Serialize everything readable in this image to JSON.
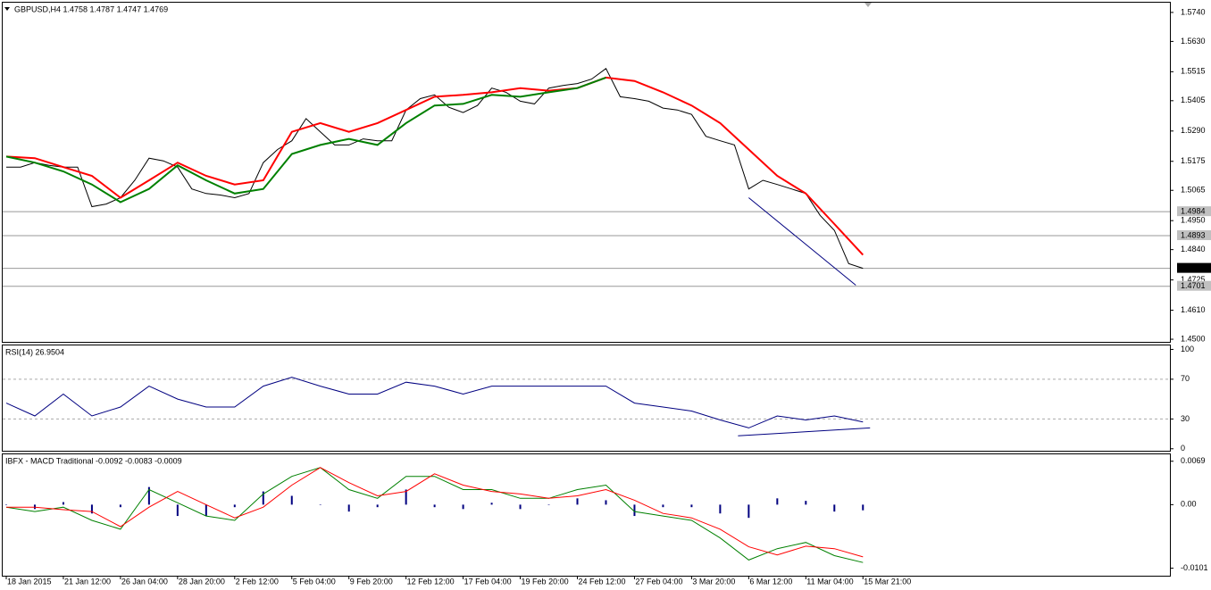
{
  "chart_data": [
    {
      "type": "line",
      "title": "GBPUSD,H4  1.4758 1.4787 1.4747 1.4769",
      "xlim": [
        -1,
        326
      ],
      "ylim": [
        1.449,
        1.5777
      ],
      "yticks": [
        {
          "value": 1.574,
          "label": "1.5740"
        },
        {
          "value": 1.563,
          "label": "1.5630"
        },
        1.5515,
        1.5405,
        {
          "value": 1.529,
          "label": "1.5290"
        },
        1.5175,
        1.5065,
        {
          "value": 1.495,
          "label": "1.4950"
        },
        {
          "value": 1.484,
          "label": "1.4840"
        },
        1.4725,
        {
          "value": 1.461,
          "label": "1.4610"
        },
        {
          "value": 1.45,
          "label": "1.4500"
        }
      ],
      "levels": [
        1.4984,
        1.4893,
        1.4701
      ],
      "current": 1.4769,
      "trendlines": [
        {
          "x": [
            208,
            238
          ],
          "y": [
            1.5037,
            1.4705
          ]
        }
      ],
      "series": [
        {
          "name": "GBPUSD",
          "color": "#000000",
          "x": [
            0,
            4,
            8,
            12,
            16,
            20,
            24,
            28,
            32,
            36,
            40,
            44,
            48,
            52,
            56,
            60,
            64,
            68,
            72,
            76,
            80,
            84,
            88,
            92,
            96,
            100,
            104,
            108,
            112,
            116,
            120,
            124,
            128,
            132,
            136,
            140,
            144,
            148,
            152,
            156,
            160,
            164,
            168,
            172,
            176,
            180,
            184,
            188,
            192,
            196,
            200,
            204,
            208,
            212,
            216,
            220,
            224,
            228,
            232,
            236,
            240
          ],
          "values": [
            1.5153,
            1.5153,
            1.517,
            1.516,
            1.5153,
            1.5153,
            1.5003,
            1.5013,
            1.5037,
            1.5103,
            1.5187,
            1.5177,
            1.5153,
            1.507,
            1.5053,
            1.5047,
            1.5037,
            1.5053,
            1.517,
            1.522,
            1.5253,
            1.5337,
            1.5287,
            1.5237,
            1.5237,
            1.526,
            1.5253,
            1.5253,
            1.537,
            1.5413,
            1.5427,
            1.538,
            1.536,
            1.5387,
            1.5453,
            1.5437,
            1.5403,
            1.5393,
            1.5453,
            1.5463,
            1.547,
            1.5487,
            1.5527,
            1.542,
            1.5413,
            1.5403,
            1.5377,
            1.537,
            1.5353,
            1.527,
            1.5253,
            1.5237,
            1.507,
            1.5103,
            1.5087,
            1.507,
            1.5053,
            1.497,
            1.4913,
            1.4787,
            1.4769
          ]
        },
        {
          "name": "MA slow",
          "color": "#ff0000",
          "x": [
            0,
            8,
            16,
            24,
            32,
            40,
            48,
            56,
            64,
            72,
            80,
            88,
            96,
            104,
            112,
            120,
            128,
            136,
            144,
            152,
            160,
            168,
            176,
            184,
            192,
            200,
            208,
            216,
            224,
            232,
            240
          ],
          "values": [
            1.5193,
            1.5187,
            1.5153,
            1.512,
            1.5037,
            1.5103,
            1.517,
            1.512,
            1.5087,
            1.5103,
            1.5287,
            1.532,
            1.5287,
            1.532,
            1.537,
            1.542,
            1.5427,
            1.5437,
            1.5453,
            1.5443,
            1.5453,
            1.5493,
            1.548,
            1.5437,
            1.5387,
            1.532,
            1.522,
            1.512,
            1.5053,
            1.4937,
            1.482
          ]
        },
        {
          "name": "MA fast",
          "color": "#008000",
          "x": [
            0,
            8,
            16,
            24,
            32,
            40,
            48,
            56,
            64,
            72,
            80,
            88,
            96,
            104,
            112,
            120,
            128,
            136,
            144,
            152,
            160,
            168
          ],
          "values": [
            1.5193,
            1.517,
            1.5137,
            1.5087,
            1.502,
            1.507,
            1.516,
            1.5103,
            1.5053,
            1.507,
            1.5203,
            1.5237,
            1.526,
            1.5237,
            1.532,
            1.5387,
            1.5393,
            1.5427,
            1.542,
            1.5437,
            1.5453,
            1.5493
          ]
        }
      ]
    },
    {
      "type": "line",
      "title": "RSI(14) 26.9504",
      "xlim": [
        -1,
        326
      ],
      "ylim": [
        -2,
        104
      ],
      "yticks": [
        100,
        70,
        30,
        0
      ],
      "levels": [
        70,
        30
      ],
      "trendlines": [
        {
          "x": [
            205,
            242
          ],
          "y": [
            13,
            21
          ]
        }
      ],
      "series": [
        {
          "name": "RSI",
          "color": "#000080",
          "x": [
            0,
            8,
            16,
            24,
            32,
            40,
            48,
            56,
            64,
            72,
            80,
            88,
            96,
            104,
            112,
            120,
            128,
            136,
            144,
            152,
            160,
            168,
            176,
            184,
            192,
            200,
            208,
            216,
            224,
            232,
            240
          ],
          "values": [
            46,
            33,
            55,
            33,
            42,
            63,
            50,
            42,
            42,
            63,
            72,
            63,
            55,
            55,
            67,
            63,
            55,
            63,
            63,
            63,
            63,
            63,
            46,
            42,
            38,
            29,
            21,
            33,
            29,
            33,
            27
          ]
        }
      ]
    },
    {
      "type": "line",
      "title": "IBFX - MACD Traditional -0.0092 -0.0083 -0.0009",
      "xlim": [
        -1,
        326
      ],
      "ylim": [
        -0.0113,
        0.008
      ],
      "yticks": [
        0.0069,
        {
          "value": 0,
          "label": "0.00"
        },
        -0.0101
      ],
      "xticks": [
        {
          "value": 0,
          "label": "18 Jan 2015"
        },
        {
          "value": 16,
          "label": "21 Jan 12:00"
        },
        {
          "value": 32,
          "label": "26 Jan 04:00"
        },
        {
          "value": 48,
          "label": "28 Jan 20:00"
        },
        {
          "value": 64,
          "label": "2 Feb 12:00"
        },
        {
          "value": 80,
          "label": "5 Feb 04:00"
        },
        {
          "value": 96,
          "label": "9 Feb 20:00"
        },
        {
          "value": 112,
          "label": "12 Feb 12:00"
        },
        {
          "value": 128,
          "label": "17 Feb 04:00"
        },
        {
          "value": 144,
          "label": "19 Feb 20:00"
        },
        {
          "value": 160,
          "label": "24 Feb 12:00"
        },
        {
          "value": 176,
          "label": "27 Feb 04:00"
        },
        {
          "value": 192,
          "label": "3 Mar 20:00"
        },
        {
          "value": 208,
          "label": "6 Mar 12:00"
        },
        {
          "value": 224,
          "label": "11 Mar 04:00"
        },
        {
          "value": 240,
          "label": "15 Mar 21:00"
        }
      ],
      "series": [
        {
          "name": "Histogram",
          "type": "bar",
          "color": "#000080",
          "x": [
            0,
            8,
            16,
            24,
            32,
            40,
            48,
            56,
            64,
            72,
            80,
            88,
            96,
            104,
            112,
            120,
            128,
            136,
            144,
            152,
            160,
            168,
            176,
            184,
            192,
            200,
            208,
            216,
            224,
            232,
            240
          ],
          "values": [
            0,
            -0.0007,
            0.0004,
            -0.0014,
            -0.0004,
            0.0028,
            -0.0018,
            -0.0018,
            -0.0004,
            0.0021,
            0.0014,
            0,
            -0.0011,
            -0.0004,
            0.0024,
            -0.0004,
            -0.0007,
            0.0003,
            -0.0007,
            0,
            0.001,
            0.0007,
            -0.0018,
            -0.0004,
            -0.0004,
            -0.0014,
            -0.0021,
            0.001,
            0.0006,
            -0.0011,
            -0.0009
          ]
        },
        {
          "name": "MACD",
          "color": "#008000",
          "x": [
            0,
            8,
            16,
            24,
            32,
            40,
            48,
            56,
            64,
            72,
            80,
            88,
            96,
            104,
            112,
            120,
            128,
            136,
            144,
            152,
            160,
            168,
            176,
            184,
            192,
            200,
            208,
            216,
            224,
            232,
            240
          ],
          "values": [
            -0.0004,
            -0.0011,
            -0.0004,
            -0.0025,
            -0.0039,
            0.0024,
            0.0003,
            -0.0018,
            -0.0025,
            0.0017,
            0.0045,
            0.0059,
            0.0024,
            0.001,
            0.0045,
            0.0045,
            0.0024,
            0.0024,
            0.001,
            0.001,
            0.0024,
            0.0031,
            -0.0011,
            -0.0018,
            -0.0025,
            -0.0053,
            -0.0088,
            -0.007,
            -0.006,
            -0.0081,
            -0.0092
          ]
        },
        {
          "name": "Signal",
          "color": "#ff0000",
          "x": [
            0,
            8,
            16,
            24,
            32,
            40,
            48,
            56,
            64,
            72,
            80,
            88,
            96,
            104,
            112,
            120,
            128,
            136,
            144,
            152,
            160,
            168,
            176,
            184,
            192,
            200,
            208,
            216,
            224,
            232,
            240
          ],
          "values": [
            -0.0004,
            -0.0004,
            -0.0008,
            -0.0011,
            -0.0035,
            -0.0004,
            0.0021,
            0.0,
            -0.0021,
            -0.0004,
            0.0031,
            0.0059,
            0.0035,
            0.0014,
            0.0021,
            0.0049,
            0.0031,
            0.0021,
            0.0017,
            0.001,
            0.0014,
            0.0024,
            0.0007,
            -0.0014,
            -0.0021,
            -0.0039,
            -0.0067,
            -0.008,
            -0.0066,
            -0.007,
            -0.0083
          ]
        }
      ]
    }
  ]
}
